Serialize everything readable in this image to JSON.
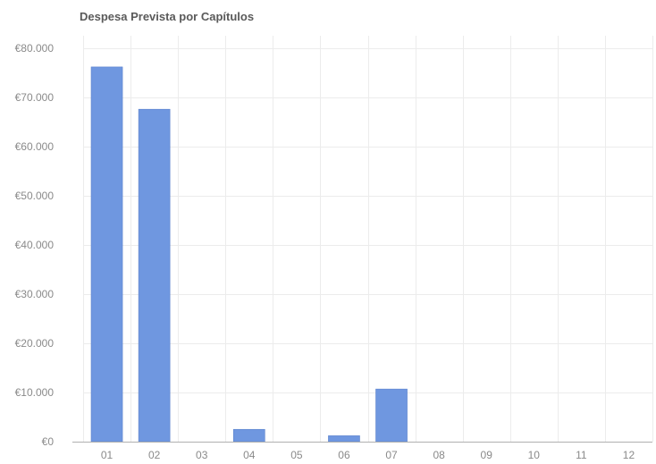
{
  "chart_data": {
    "type": "bar",
    "title": "Despesa Prevista por Capítulos",
    "xlabel": "",
    "ylabel": "",
    "categories": [
      "01",
      "02",
      "03",
      "04",
      "05",
      "06",
      "07",
      "08",
      "09",
      "10",
      "11",
      "12"
    ],
    "values": [
      76200,
      67600,
      0,
      2500,
      0,
      1200,
      10700,
      0,
      0,
      0,
      0,
      0
    ],
    "ylim": [
      0,
      80000
    ],
    "yticks": [
      0,
      10000,
      20000,
      30000,
      40000,
      50000,
      60000,
      70000,
      80000
    ],
    "ytick_labels": [
      "€0",
      "€10.000",
      "€20.000",
      "€30.000",
      "€40.000",
      "€50.000",
      "€60.000",
      "€70.000",
      "€80.000"
    ],
    "grid": true,
    "legend": "none",
    "colors": {
      "bar": "#6f97e0",
      "bar_edge": "#5b82cc",
      "grid": "#ececec",
      "axis": "#b0b0b0",
      "tick_text": "#8a8a8a",
      "title_text": "#5a5a5a"
    }
  }
}
